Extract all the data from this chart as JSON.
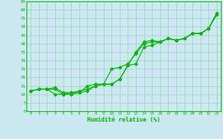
{
  "xlabel": "Humidité relative (%)",
  "background_color": "#cce8f0",
  "grid_color": "#99ccbb",
  "line_color": "#00bb00",
  "marker": "D",
  "markersize": 2.0,
  "linewidth": 0.9,
  "xlim": [
    -0.5,
    23.5
  ],
  "ylim": [
    0,
    65
  ],
  "xticks": [
    0,
    1,
    2,
    3,
    4,
    5,
    6,
    7,
    8,
    9,
    10,
    11,
    12,
    13,
    14,
    15,
    16,
    17,
    18,
    19,
    20,
    21,
    22,
    23
  ],
  "yticks": [
    0,
    5,
    10,
    15,
    20,
    25,
    30,
    35,
    40,
    45,
    50,
    55,
    60,
    65
  ],
  "line1_x": [
    0,
    1,
    2,
    3,
    4,
    5,
    6,
    7,
    8,
    9,
    10,
    11,
    12,
    13,
    14,
    15,
    16,
    17,
    18,
    19,
    20,
    21,
    22,
    23
  ],
  "line1_y": [
    12,
    13,
    13,
    14,
    11,
    11,
    11,
    15,
    16,
    16,
    16,
    19,
    27,
    35,
    41,
    42,
    41,
    43,
    42,
    43,
    46,
    46,
    49,
    58
  ],
  "line2_x": [
    0,
    1,
    2,
    3,
    4,
    5,
    6,
    7,
    8,
    9,
    10,
    11,
    12,
    13,
    14,
    15,
    16,
    17,
    18,
    19,
    20,
    21,
    22,
    23
  ],
  "line2_y": [
    12,
    13,
    13,
    10,
    10,
    11,
    12,
    13,
    15,
    16,
    25,
    26,
    28,
    34,
    40,
    41,
    41,
    43,
    42,
    43,
    46,
    46,
    49,
    58
  ],
  "line3_x": [
    0,
    1,
    2,
    3,
    4,
    5,
    6,
    7,
    8,
    9,
    10,
    11,
    12,
    13,
    14,
    15,
    16,
    17,
    18,
    19,
    20,
    21,
    22,
    23
  ],
  "line3_y": [
    12,
    13,
    13,
    13,
    10,
    10,
    11,
    12,
    15,
    16,
    16,
    19,
    27,
    28,
    38,
    39,
    41,
    43,
    42,
    43,
    46,
    46,
    49,
    57
  ]
}
